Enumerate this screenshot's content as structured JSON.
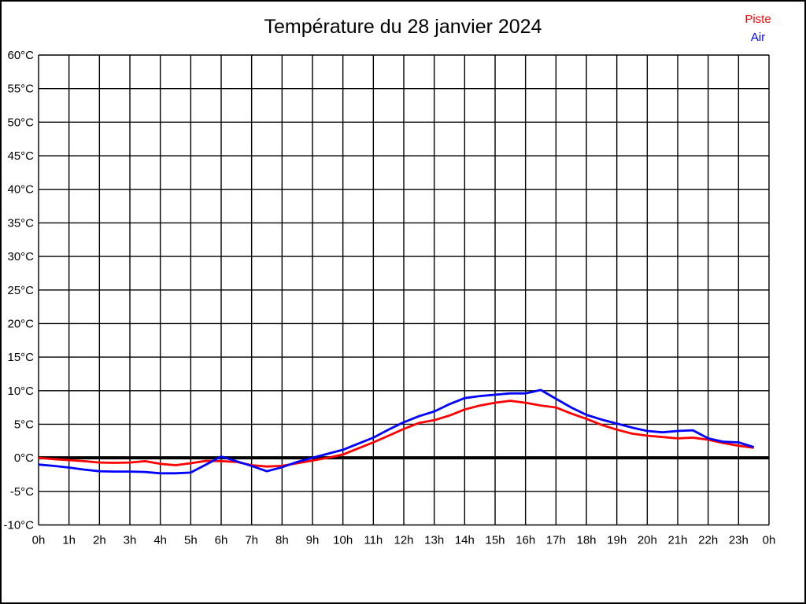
{
  "window": {
    "background": "#ffffff",
    "border_color": "#000000"
  },
  "header": {
    "title": "Température du 28 janvier 2024"
  },
  "legend": {
    "position": "top-right",
    "items": [
      {
        "label": "Piste",
        "color": "#ff0000"
      },
      {
        "label": "Air",
        "color": "#0000ff"
      }
    ]
  },
  "chart_data": {
    "type": "line",
    "title": "Température du 28 janvier 2024",
    "xlabel": "",
    "ylabel": "",
    "grid": true,
    "grid_color": "#000000",
    "zero_line_value": 0,
    "zero_line_width": 4,
    "xlim": [
      0,
      24
    ],
    "ylim": [
      -10,
      60
    ],
    "x_unit": "h",
    "y_unit": "°C",
    "x": [
      0,
      0.5,
      1,
      1.5,
      2,
      2.5,
      3,
      3.5,
      4,
      4.5,
      5,
      5.5,
      6,
      6.5,
      7,
      7.5,
      8,
      8.5,
      9,
      9.5,
      10,
      10.5,
      11,
      11.5,
      12,
      12.5,
      13,
      13.5,
      14,
      14.5,
      15,
      15.5,
      16,
      16.5,
      17,
      17.5,
      18,
      18.5,
      19,
      19.5,
      20,
      20.5,
      21,
      21.5,
      22,
      22.5,
      23,
      23.5
    ],
    "series": [
      {
        "name": "Piste",
        "color": "#ff0000",
        "values": [
          0.0,
          -0.2,
          -0.35,
          -0.5,
          -0.7,
          -0.75,
          -0.7,
          -0.5,
          -0.9,
          -1.1,
          -0.8,
          -0.45,
          -0.5,
          -0.6,
          -1.1,
          -1.3,
          -1.2,
          -0.8,
          -0.4,
          0.0,
          0.5,
          1.4,
          2.3,
          3.3,
          4.3,
          5.2,
          5.6,
          6.3,
          7.2,
          7.8,
          8.2,
          8.5,
          8.2,
          7.8,
          7.5,
          6.6,
          5.8,
          4.9,
          4.2,
          3.6,
          3.3,
          3.1,
          2.9,
          3.0,
          2.7,
          2.2,
          1.8,
          1.5
        ]
      },
      {
        "name": "Air",
        "color": "#0000ff",
        "values": [
          -1.0,
          -1.2,
          -1.45,
          -1.75,
          -2.0,
          -2.05,
          -2.05,
          -2.1,
          -2.3,
          -2.3,
          -2.2,
          -1.0,
          0.2,
          -0.5,
          -1.2,
          -2.0,
          -1.4,
          -0.6,
          0.0,
          0.6,
          1.2,
          2.1,
          3.0,
          4.2,
          5.3,
          6.2,
          6.9,
          8.0,
          8.9,
          9.2,
          9.4,
          9.6,
          9.6,
          10.1,
          8.8,
          7.5,
          6.4,
          5.7,
          5.1,
          4.5,
          4.0,
          3.8,
          4.0,
          4.1,
          2.9,
          2.4,
          2.3,
          1.6
        ]
      }
    ],
    "y_ticks": [
      {
        "v": 60,
        "label": "60°C"
      },
      {
        "v": 55,
        "label": "55°C"
      },
      {
        "v": 50,
        "label": "50°C"
      },
      {
        "v": 45,
        "label": "45°C"
      },
      {
        "v": 40,
        "label": "40°C"
      },
      {
        "v": 35,
        "label": "35°C"
      },
      {
        "v": 30,
        "label": "30°C"
      },
      {
        "v": 25,
        "label": "25°C"
      },
      {
        "v": 20,
        "label": "20°C"
      },
      {
        "v": 15,
        "label": "15°C"
      },
      {
        "v": 10,
        "label": "10°C"
      },
      {
        "v": 5,
        "label": "5°C"
      },
      {
        "v": 0,
        "label": "0°C"
      },
      {
        "v": -5,
        "label": "-5°C"
      },
      {
        "v": -10,
        "label": "-10°C"
      }
    ],
    "x_ticks": [
      {
        "v": 0,
        "label": "0h"
      },
      {
        "v": 1,
        "label": "1h"
      },
      {
        "v": 2,
        "label": "2h"
      },
      {
        "v": 3,
        "label": "3h"
      },
      {
        "v": 4,
        "label": "4h"
      },
      {
        "v": 5,
        "label": "5h"
      },
      {
        "v": 6,
        "label": "6h"
      },
      {
        "v": 7,
        "label": "7h"
      },
      {
        "v": 8,
        "label": "8h"
      },
      {
        "v": 9,
        "label": "9h"
      },
      {
        "v": 10,
        "label": "10h"
      },
      {
        "v": 11,
        "label": "11h"
      },
      {
        "v": 12,
        "label": "12h"
      },
      {
        "v": 13,
        "label": "13h"
      },
      {
        "v": 14,
        "label": "14h"
      },
      {
        "v": 15,
        "label": "15h"
      },
      {
        "v": 16,
        "label": "16h"
      },
      {
        "v": 17,
        "label": "17h"
      },
      {
        "v": 18,
        "label": "18h"
      },
      {
        "v": 19,
        "label": "19h"
      },
      {
        "v": 20,
        "label": "20h"
      },
      {
        "v": 21,
        "label": "21h"
      },
      {
        "v": 22,
        "label": "22h"
      },
      {
        "v": 23,
        "label": "23h"
      },
      {
        "v": 24,
        "label": "0h"
      }
    ]
  }
}
